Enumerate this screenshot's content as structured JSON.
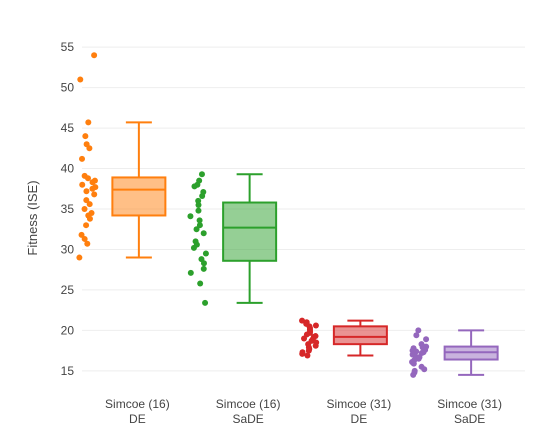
{
  "chart_data": {
    "type": "box",
    "ylabel": "Fitness (ISE)",
    "xlabel": "",
    "ylim": [
      13.5,
      56.5
    ],
    "yticks": [
      15,
      20,
      25,
      30,
      35,
      40,
      45,
      50,
      55
    ],
    "grid": true,
    "categories": [
      [
        "Simcoe (16)",
        "DE"
      ],
      [
        "Simcoe (16)",
        "SaDE"
      ],
      [
        "Simcoe (31)",
        "DE"
      ],
      [
        "Simcoe (31)",
        "SaDE"
      ]
    ],
    "series": [
      {
        "color": "#ff7f0e",
        "stats": {
          "min": 29.0,
          "q1": 34.2,
          "median": 37.4,
          "q3": 38.9,
          "max": 45.7
        },
        "points": [
          54.0,
          51.0,
          45.7,
          44.0,
          43.0,
          42.5,
          41.2,
          39.1,
          38.8,
          38.5,
          38.3,
          38.0,
          37.7,
          37.5,
          37.2,
          36.8,
          36.1,
          35.6,
          35.0,
          34.5,
          34.2,
          33.8,
          33.0,
          31.8,
          31.3,
          30.7,
          29.0
        ]
      },
      {
        "color": "#2ca02c",
        "stats": {
          "min": 23.4,
          "q1": 28.6,
          "median": 32.7,
          "q3": 35.8,
          "max": 39.3
        },
        "points": [
          39.3,
          38.5,
          38.0,
          37.8,
          37.1,
          36.6,
          36.0,
          35.5,
          34.8,
          34.1,
          33.6,
          33.0,
          32.5,
          32.0,
          31.0,
          30.6,
          30.2,
          29.5,
          28.8,
          28.3,
          27.6,
          27.1,
          25.8,
          23.4
        ]
      },
      {
        "color": "#d62728",
        "stats": {
          "min": 16.9,
          "q1": 18.3,
          "median": 19.2,
          "q3": 20.5,
          "max": 21.2
        },
        "points": [
          21.2,
          21.0,
          20.8,
          20.6,
          20.5,
          20.3,
          20.1,
          19.9,
          19.7,
          19.5,
          19.3,
          19.2,
          19.0,
          18.9,
          18.7,
          18.5,
          18.3,
          18.1,
          17.9,
          17.7,
          17.5,
          17.3,
          17.1,
          16.9
        ]
      },
      {
        "color": "#9467bd",
        "stats": {
          "min": 14.5,
          "q1": 16.4,
          "median": 17.3,
          "q3": 18.0,
          "max": 20.0
        },
        "points": [
          20.0,
          19.4,
          18.9,
          18.3,
          18.0,
          17.9,
          17.8,
          17.6,
          17.5,
          17.4,
          17.3,
          17.2,
          17.1,
          17.0,
          16.9,
          16.7,
          16.5,
          16.3,
          16.1,
          15.9,
          15.5,
          15.2,
          15.0,
          14.8,
          14.5
        ]
      }
    ]
  }
}
